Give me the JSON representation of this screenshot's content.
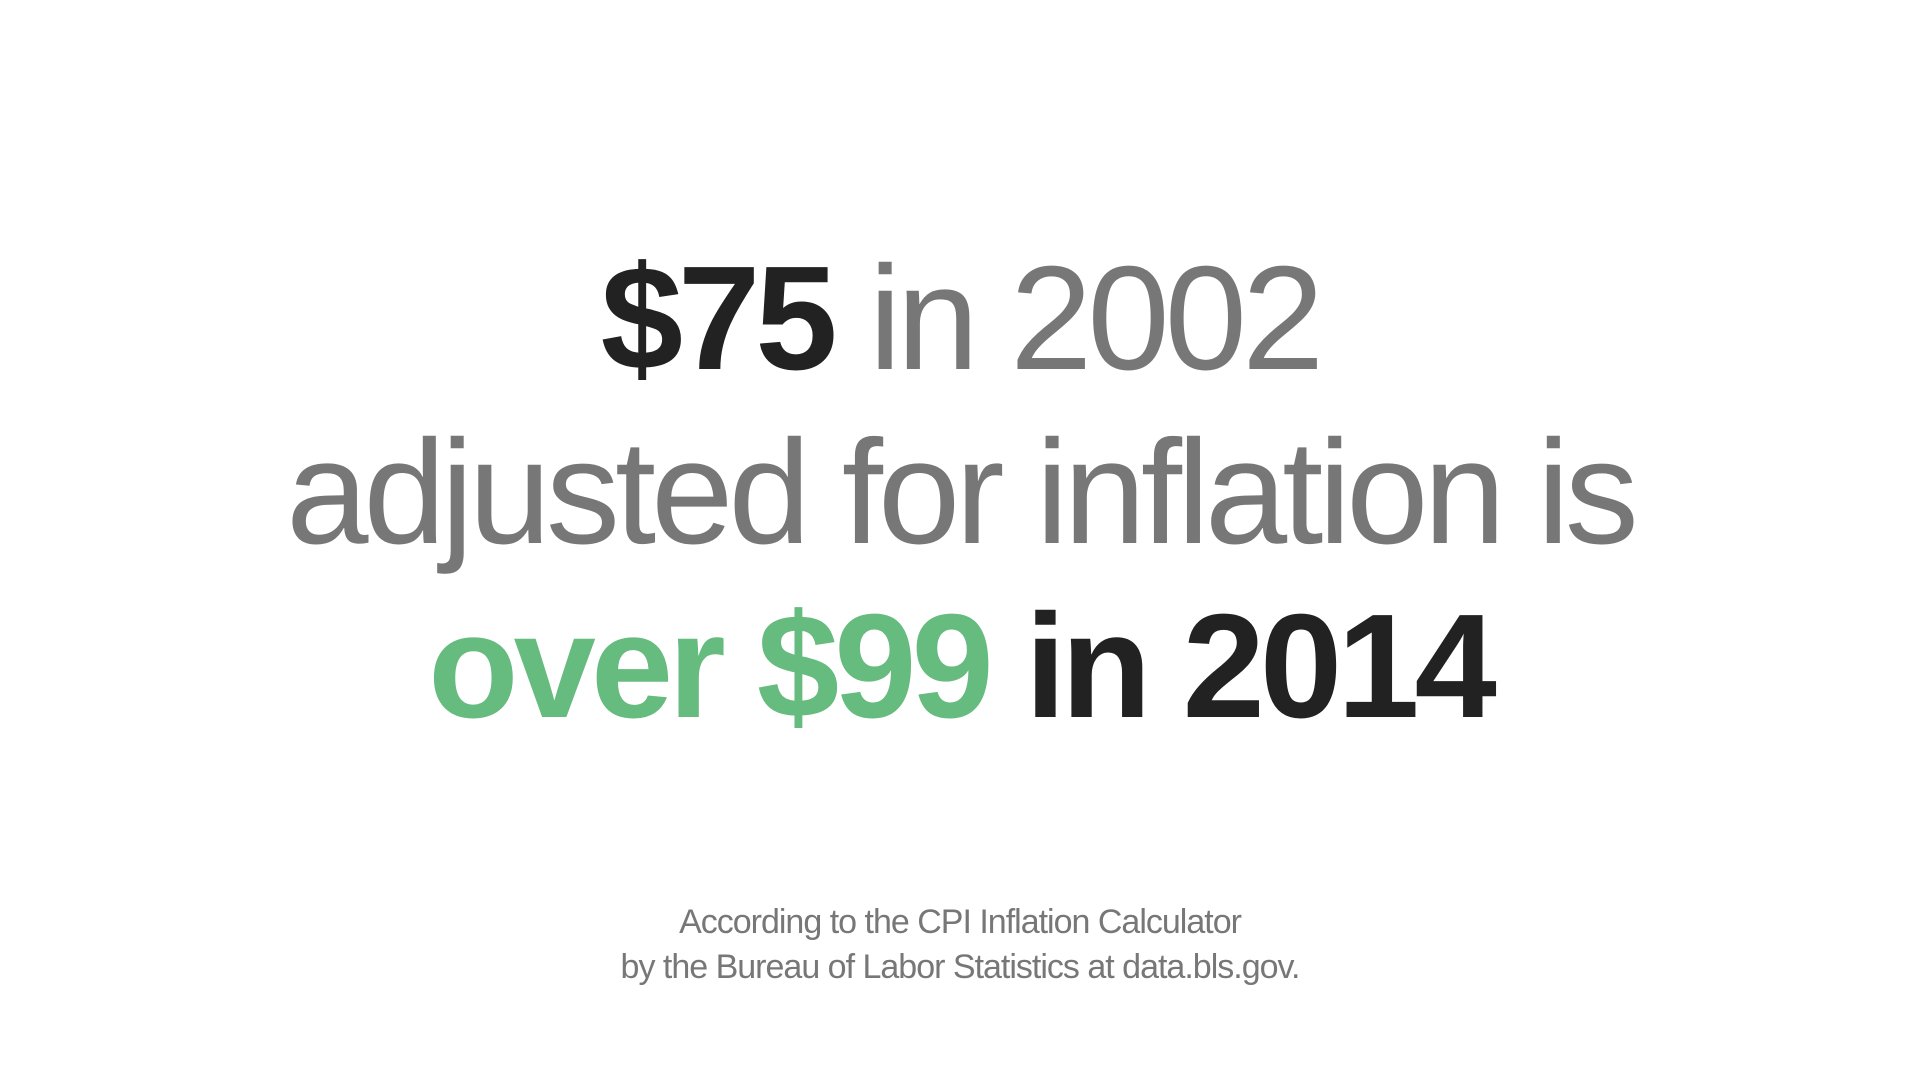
{
  "headline": {
    "line1": {
      "amount": "$75",
      "year_text": " in 2002"
    },
    "line2": {
      "text": "adjusted for inflation is"
    },
    "line3": {
      "highlight": "over $99",
      "tail": " in 2014"
    }
  },
  "footnote": {
    "line1": "According to the CPI Inflation Calculator",
    "line2": "by the Bureau of Labor Statistics at data.bls.gov."
  },
  "colors": {
    "background": "#ffffff",
    "dark_text": "#222222",
    "gray_text": "#777777",
    "accent_green": "#66bb7f"
  }
}
